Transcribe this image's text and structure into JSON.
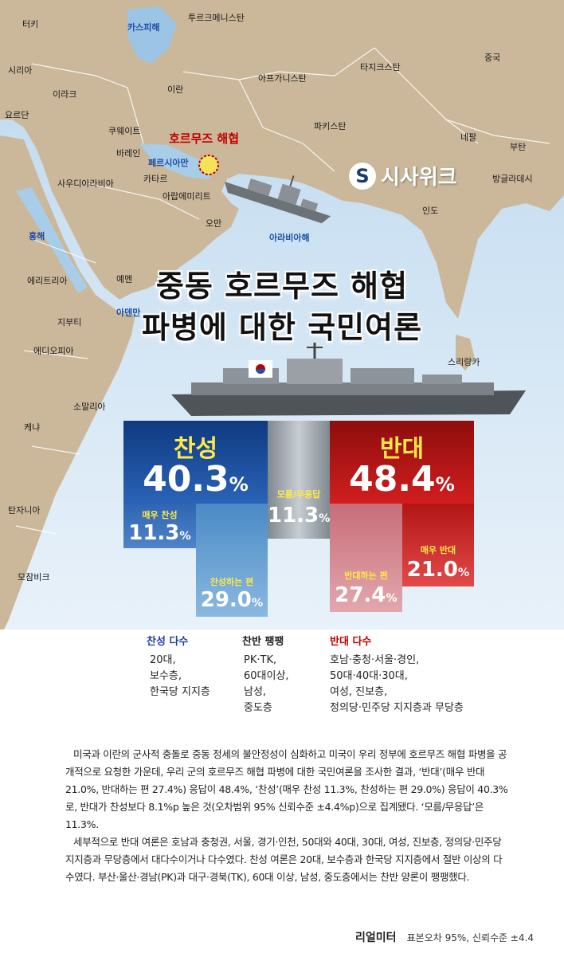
{
  "map": {
    "places": [
      {
        "id": "turkey",
        "text": "터키"
      },
      {
        "id": "caspian",
        "text": "카스피해"
      },
      {
        "id": "turkmenistan",
        "text": "투르크메니스탄"
      },
      {
        "id": "syria",
        "text": "시리아"
      },
      {
        "id": "iraq",
        "text": "이라크"
      },
      {
        "id": "jordan",
        "text": "요르단"
      },
      {
        "id": "iran",
        "text": "이란"
      },
      {
        "id": "afghanistan",
        "text": "아프가니스탄"
      },
      {
        "id": "tajikistan",
        "text": "타지크스탄"
      },
      {
        "id": "china",
        "text": "중국"
      },
      {
        "id": "kuwait",
        "text": "쿠웨이트"
      },
      {
        "id": "bahrain",
        "text": "바레인"
      },
      {
        "id": "pakistan",
        "text": "파키스탄"
      },
      {
        "id": "nepal",
        "text": "네팔"
      },
      {
        "id": "bhutan",
        "text": "부탄"
      },
      {
        "id": "gulf",
        "text": "페르시아만"
      },
      {
        "id": "qatar",
        "text": "카타르"
      },
      {
        "id": "saudi",
        "text": "사우디아라비아"
      },
      {
        "id": "uae",
        "text": "아랍에미리트"
      },
      {
        "id": "bangladesh",
        "text": "방글라데시"
      },
      {
        "id": "india",
        "text": "인도"
      },
      {
        "id": "oman",
        "text": "오만"
      },
      {
        "id": "redsea",
        "text": "홍해"
      },
      {
        "id": "arabiansea",
        "text": "아라비아해"
      },
      {
        "id": "eritrea",
        "text": "에리트리아"
      },
      {
        "id": "yemen",
        "text": "예멘"
      },
      {
        "id": "aden",
        "text": "아덴만"
      },
      {
        "id": "djibouti",
        "text": "지부티"
      },
      {
        "id": "ethiopia",
        "text": "에디오피아"
      },
      {
        "id": "srilanka",
        "text": "스리랑카"
      },
      {
        "id": "somalia",
        "text": "소말리아"
      },
      {
        "id": "kenya",
        "text": "케냐"
      },
      {
        "id": "tanzania",
        "text": "탄자니아"
      },
      {
        "id": "mozambique",
        "text": "모잠비크"
      }
    ],
    "hormuz_label": "호르무즈 해협",
    "logo_text": "시사위크"
  },
  "title": {
    "line1": "중동 호르무즈 해협",
    "line2": "파병에 대한 국민여론"
  },
  "colors": {
    "favor": "#1f4fa0",
    "favor_light": "#5b93c9",
    "neutral": "#9aa4ad",
    "oppose": "#c41818",
    "oppose_light": "#d78890",
    "label_yellow": "#ffe94a"
  },
  "chart_data": {
    "type": "bar",
    "unit": "%",
    "groups": [
      {
        "label": "찬성",
        "value": 40.3,
        "breakdown": [
          {
            "label": "매우 찬성",
            "value": 11.3
          },
          {
            "label": "찬성하는 편",
            "value": 29.0
          }
        ]
      },
      {
        "label": "모름/무응답",
        "value": 11.3
      },
      {
        "label": "반대",
        "value": 48.4,
        "breakdown": [
          {
            "label": "반대하는 편",
            "value": 27.4
          },
          {
            "label": "매우 반대",
            "value": 21.0
          }
        ]
      }
    ]
  },
  "bars": {
    "favor": {
      "label": "찬성",
      "value": "40.3",
      "unit": "%"
    },
    "strong_favor": {
      "label": "매우 찬성",
      "value": "11.3",
      "unit": "%"
    },
    "some_favor": {
      "label": "찬성하는 편",
      "value": "29.0",
      "unit": "%"
    },
    "neutral": {
      "label": "모름/무응답",
      "value": "11.3",
      "unit": "%"
    },
    "oppose": {
      "label": "반대",
      "value": "48.4",
      "unit": "%"
    },
    "some_oppose": {
      "label": "반대하는 편",
      "value": "27.4",
      "unit": "%"
    },
    "strong_oppose": {
      "label": "매우 반대",
      "value": "21.0",
      "unit": "%"
    }
  },
  "groups": {
    "favor": {
      "heading": "찬성 다수",
      "items": [
        "20대,",
        "보수층,",
        "한국당 지지층"
      ]
    },
    "even": {
      "heading": "찬반 팽팽",
      "items": [
        "PK·TK,",
        "60대이상,",
        "남성,",
        "중도층"
      ]
    },
    "oppose": {
      "heading": "반대 다수",
      "items": [
        "호남·충청·서울·경인,",
        "50대·40대·30대,",
        "여성, 진보층,",
        "정의당·민주당 지지층과 무당층"
      ]
    }
  },
  "body": {
    "p1": "미국과 이란의 군사적 충돌로 중동 정세의 불안정성이 심화하고 미국이 우리 정부에 호르무즈 해협 파병을 공개적으로 요청한 가운데, 우리 군의 호르무즈 해협 파병에 대한 국민여론을 조사한 결과, ‘반대’(매우 반대 21.0%, 반대하는 편 27.4%) 응답이 48.4%, ‘찬성’(매우 찬성 11.3%, 찬성하는 편 29.0%) 응답이 40.3%로, 반대가 찬성보다 8.1%p 높은 것(오차범위 95% 신뢰수준 ±4.4%p)으로 집계됐다. ‘모름/무응답’은 11.3%.",
    "p2": "세부적으로 반대 여론은 호남과 충청권, 서울, 경기·인천, 50대와 40대, 30대, 여성, 진보층, 정의당·민주당 지지층과 무당층에서 대다수이거나 다수였다. 찬성 여론은 20대, 보수층과 한국당 지지층에서 절반 이상의 다수였다. 부산·울산·경남(PK)과 대구·경북(TK), 60대 이상, 남성, 중도층에서는 찬반 양론이 팽팽했다."
  },
  "footer": {
    "source": "리얼미터",
    "note": "표본오차 95%, 신뢰수준 ±4.4"
  }
}
